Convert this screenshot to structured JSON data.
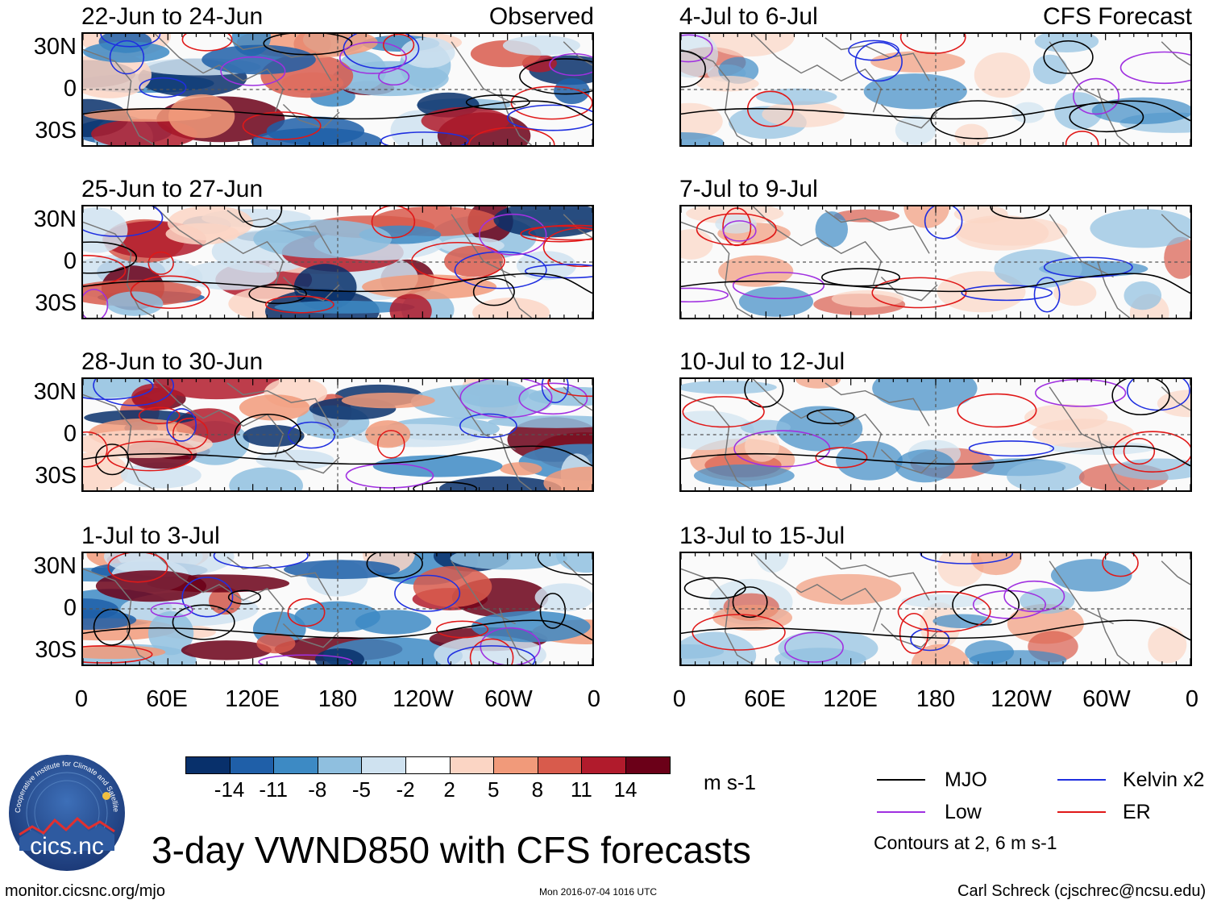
{
  "chart_data": {
    "type": "heatmap",
    "title": "3-day VWND850 with CFS forecasts",
    "variable": "850 hPa meridional wind",
    "units": "m s-1",
    "x_ticks": [
      "0",
      "60E",
      "120E",
      "180",
      "120W",
      "60W",
      "0"
    ],
    "y_ticks": [
      "30N",
      "0",
      "30S"
    ],
    "colorbar_labels": [
      "-14",
      "-11",
      "-8",
      "-5",
      "-2",
      "2",
      "5",
      "8",
      "11",
      "14"
    ],
    "colorbar_colors": [
      "#08306b",
      "#1f5fa8",
      "#3d8ac4",
      "#8fbfdf",
      "#cfe2f0",
      "#ffffff",
      "#fbd5c4",
      "#f19a7a",
      "#d85b4c",
      "#b11b2c",
      "#6b0018"
    ],
    "contour_levels_text": "Contours at 2, 6 m s-1",
    "legend": [
      {
        "name": "MJO",
        "color": "#000000"
      },
      {
        "name": "Kelvin x2",
        "color": "#1f2fe0"
      },
      {
        "name": "Low",
        "color": "#a030e0"
      },
      {
        "name": "ER",
        "color": "#e01818"
      }
    ],
    "observed_label": "Observed",
    "forecast_label": "CFS Forecast",
    "observed_panels": [
      "22-Jun to 24-Jun",
      "25-Jun to 27-Jun",
      "28-Jun to 30-Jun",
      "1-Jul to 3-Jul"
    ],
    "forecast_panels": [
      "4-Jul to 6-Jul",
      "7-Jul to 9-Jul",
      "10-Jul to 12-Jul",
      "13-Jul to 15-Jul"
    ]
  },
  "footer": {
    "logo_text": "cics.nc",
    "logo_ring_text": "Cooperative Institute for Climate and Satellites",
    "site": "monitor.cicsnc.org/mjo",
    "timestamp": "Mon 2016-07-04 1016 UTC",
    "author": "Carl Schreck (cjschrec@ncsu.edu)"
  }
}
